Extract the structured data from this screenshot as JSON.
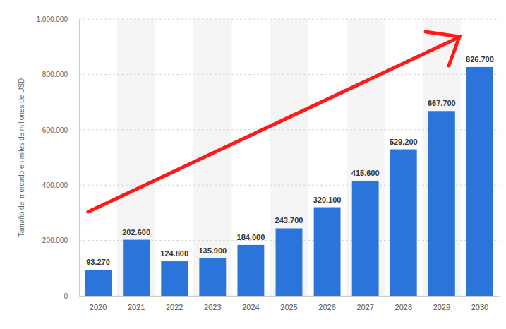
{
  "chart_data": {
    "type": "bar",
    "ylabel": "Tamaño del mercado en miles de millones de USD",
    "categories": [
      "2020",
      "2021",
      "2022",
      "2023",
      "2024",
      "2025",
      "2026",
      "2027",
      "2028",
      "2029",
      "2030"
    ],
    "values": [
      93270,
      202600,
      124800,
      135900,
      184000,
      243700,
      320100,
      415600,
      529200,
      667700,
      826700
    ],
    "value_labels": [
      "93.270",
      "202.600",
      "124.800",
      "135.900",
      "184.000",
      "243.700",
      "320.100",
      "415.600",
      "529.200",
      "667.700",
      "826.700"
    ],
    "data_labels": true,
    "color": "#2b74d9",
    "ylim": [
      0,
      1000000
    ],
    "yticks": [
      0,
      {
        "value": 200000,
        "label": "200.000"
      },
      {
        "value": 400000,
        "label": "400.000"
      },
      {
        "value": 600000,
        "label": "600.000"
      },
      {
        "value": 800000,
        "label": "800.000"
      },
      {
        "value": 1000000,
        "label": "1.000.000"
      }
    ],
    "grid": true
  }
}
